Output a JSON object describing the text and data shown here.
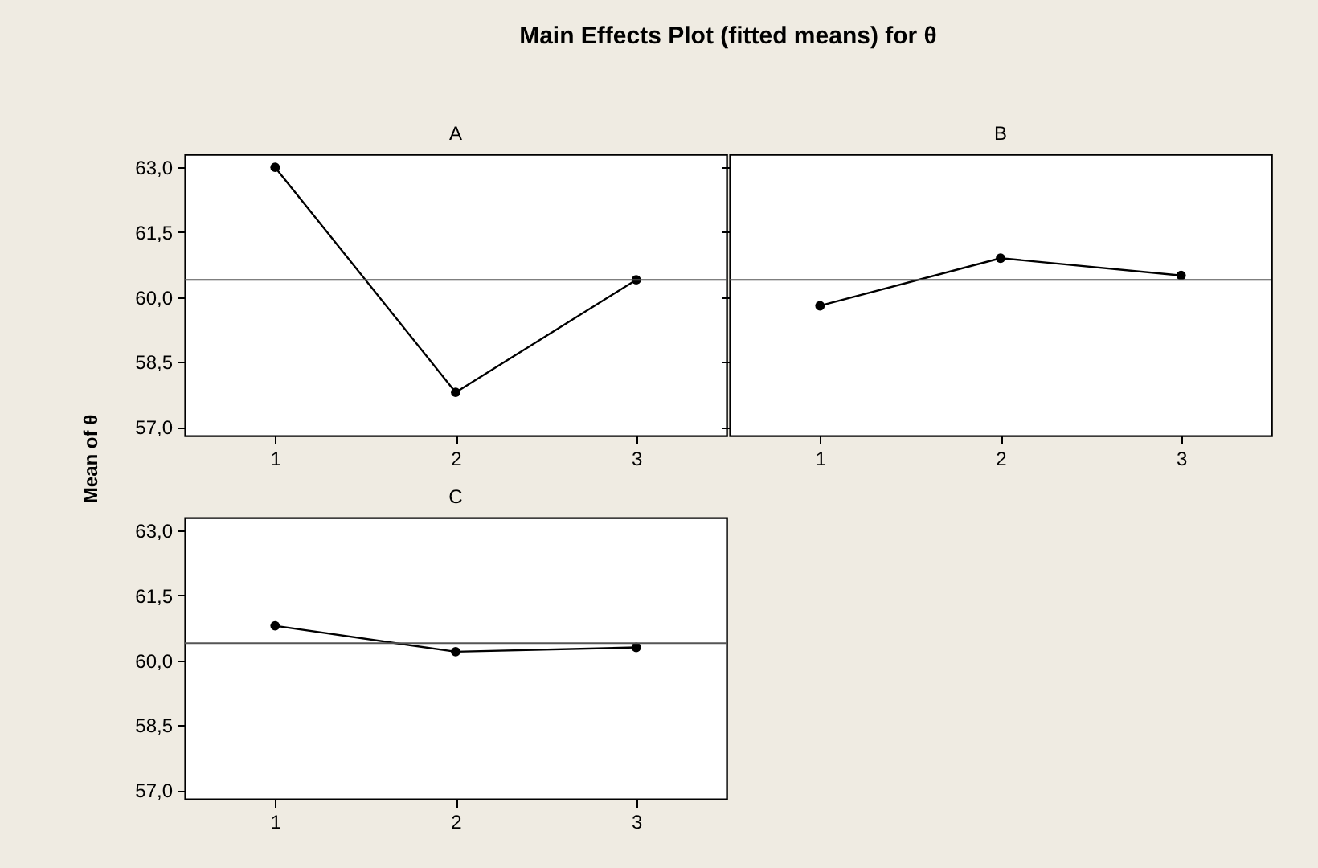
{
  "chart_data": [
    {
      "type": "line",
      "title": "Main Effects Plot (fitted means) for θ",
      "subtitle": "A",
      "ylabel": "Mean of θ",
      "x": [
        1,
        2,
        3
      ],
      "series": [
        {
          "color": "#000000",
          "values": [
            63.0,
            57.8,
            60.4
          ]
        }
      ],
      "marker": "circle",
      "line_style": "solid",
      "xlim": [
        0.5,
        3.5
      ],
      "xticks": [
        1,
        2,
        3
      ],
      "ylim": [
        56.8,
        63.3
      ],
      "yticks": [
        {
          "value": 57,
          "label": "57,0"
        },
        {
          "value": 58.5,
          "label": "58,5"
        },
        {
          "value": 60,
          "label": "60,0"
        },
        {
          "value": 61.5,
          "label": "61,5"
        },
        {
          "value": 63,
          "label": "63,0"
        }
      ],
      "ref_lines": [
        {
          "axis": "y",
          "value": 60.4,
          "color": "#555555"
        }
      ]
    },
    {
      "type": "line",
      "subtitle": "B",
      "x": [
        1,
        2,
        3
      ],
      "series": [
        {
          "color": "#000000",
          "values": [
            59.8,
            60.9,
            60.5
          ]
        }
      ],
      "marker": "circle",
      "line_style": "solid",
      "xlim": [
        0.5,
        3.5
      ],
      "xticks": [
        1,
        2,
        3
      ],
      "ylim": [
        56.8,
        63.3
      ],
      "yticks": [
        {
          "value": 57,
          "label": null
        },
        {
          "value": 58.5,
          "label": null
        },
        {
          "value": 60,
          "label": null
        },
        {
          "value": 61.5,
          "label": null
        },
        {
          "value": 63,
          "label": null
        }
      ],
      "tick_labels": "x",
      "ref_lines": [
        {
          "axis": "y",
          "value": 60.4,
          "color": "#555555"
        }
      ]
    },
    {
      "type": "line",
      "subtitle": "C",
      "x": [
        1,
        2,
        3
      ],
      "series": [
        {
          "color": "#000000",
          "values": [
            60.8,
            60.2,
            60.3
          ]
        }
      ],
      "marker": "circle",
      "line_style": "solid",
      "xlim": [
        0.5,
        3.5
      ],
      "xticks": [
        1,
        2,
        3
      ],
      "ylim": [
        56.8,
        63.3
      ],
      "yticks": [
        {
          "value": 57,
          "label": "57,0"
        },
        {
          "value": 58.5,
          "label": "58,5"
        },
        {
          "value": 60,
          "label": "60,0"
        },
        {
          "value": 61.5,
          "label": "61,5"
        },
        {
          "value": 63,
          "label": "63,0"
        }
      ],
      "ref_lines": [
        {
          "axis": "y",
          "value": 60.4,
          "color": "#555555"
        }
      ]
    }
  ]
}
